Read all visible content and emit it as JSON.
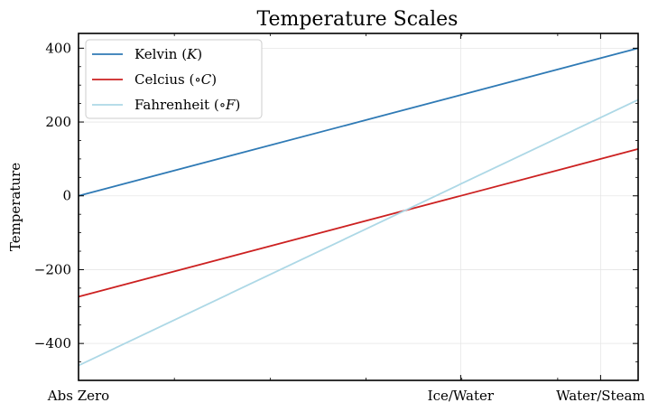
{
  "chart_data": {
    "type": "line",
    "title": "Temperature Scales",
    "xlabel": "",
    "ylabel": "Temperature",
    "x": [
      0,
      400
    ],
    "x_ticks": [
      {
        "value": 0,
        "label": "Abs Zero"
      },
      {
        "value": 273.15,
        "label": "Ice/Water"
      },
      {
        "value": 373.15,
        "label": "Water/Steam"
      }
    ],
    "xlim": [
      0,
      400
    ],
    "ylim": [
      -500,
      440
    ],
    "y_ticks": [
      400,
      200,
      0,
      -200,
      -400
    ],
    "y_tick_labels": [
      "400",
      "200",
      "0",
      "−200",
      "−400"
    ],
    "grid": true,
    "legend_position": "top-left",
    "series": [
      {
        "name": "Kelvin",
        "unit": "K",
        "color": "#2f7ab5",
        "values": [
          0,
          400
        ]
      },
      {
        "name": "Celcius",
        "unit": "∘C",
        "color": "#cc2121",
        "values": [
          -273.15,
          126.85
        ]
      },
      {
        "name": "Fahrenheit",
        "unit": "∘F",
        "color": "#add8e6",
        "values": [
          -459.67,
          260.33
        ]
      }
    ]
  }
}
